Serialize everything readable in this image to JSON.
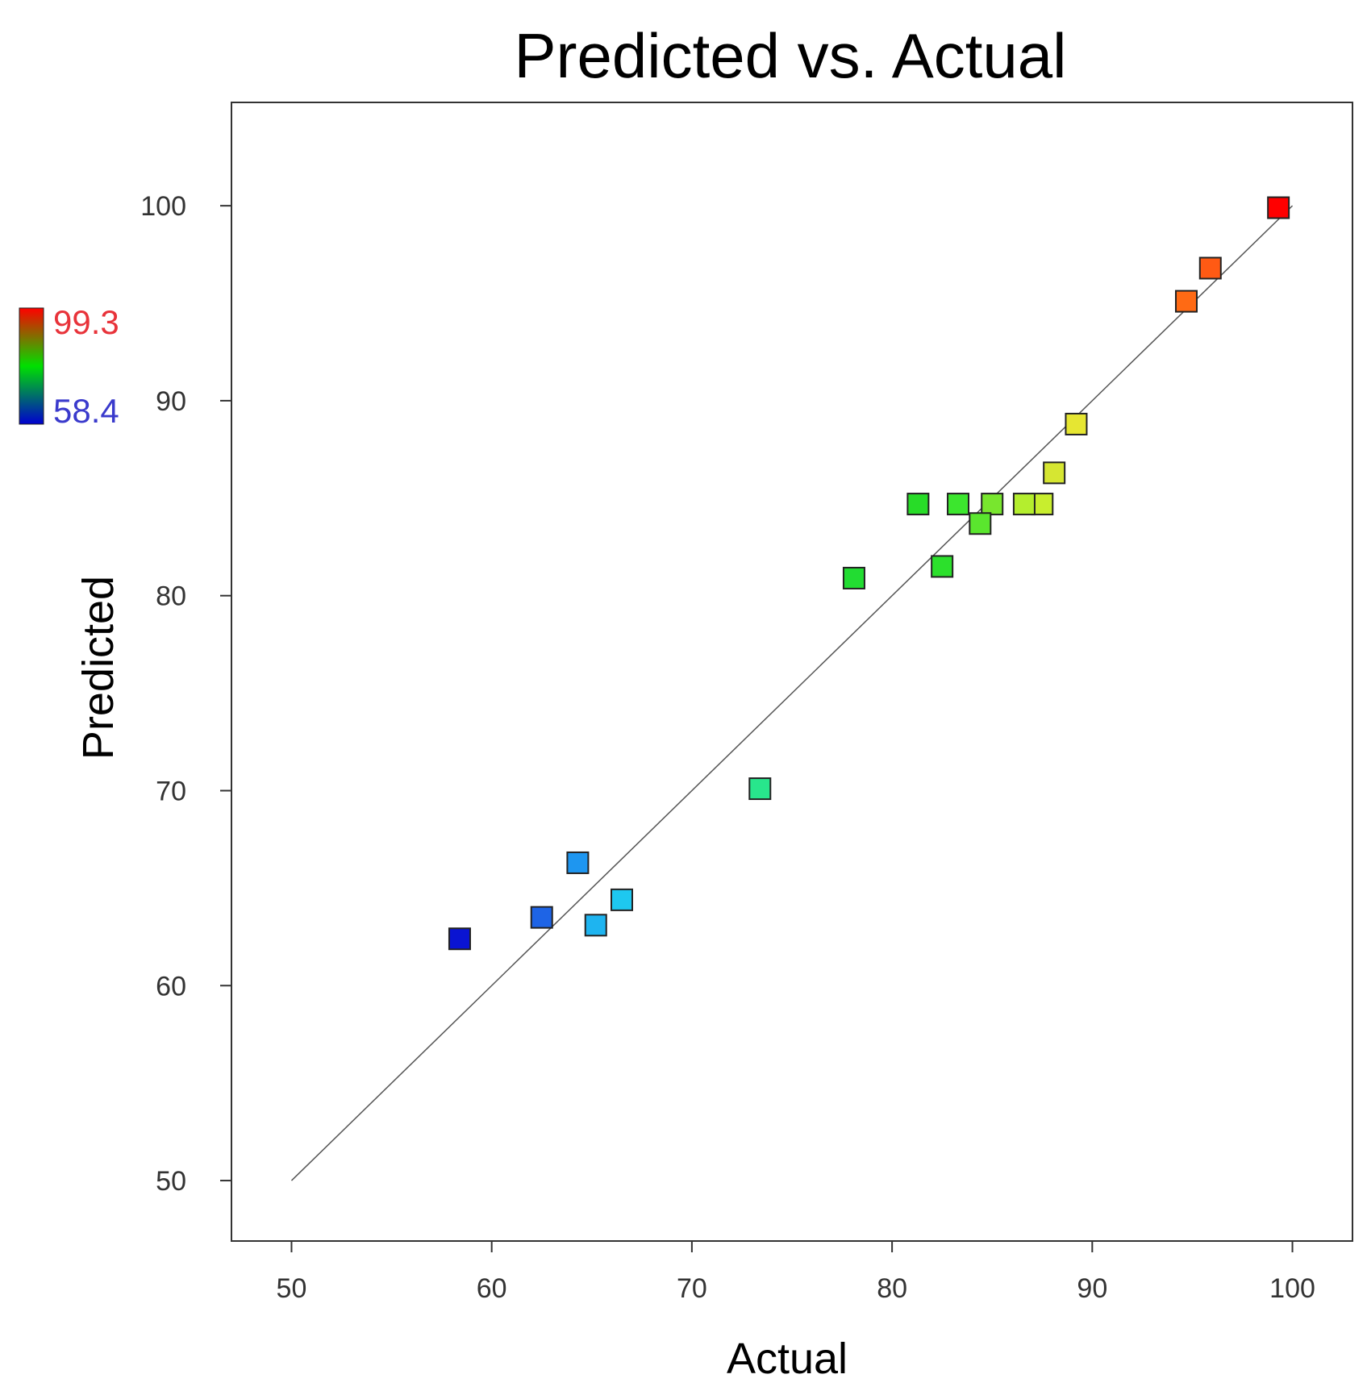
{
  "chart_data": {
    "type": "scatter",
    "title": "Predicted vs. Actual",
    "xlabel": "Actual",
    "ylabel": "Predicted",
    "xlim": [
      47,
      103
    ],
    "ylim": [
      46.9,
      105.3
    ],
    "xticks": [
      50,
      60,
      70,
      80,
      90,
      100
    ],
    "yticks": [
      50,
      60,
      70,
      80,
      90,
      100
    ],
    "reference_line": {
      "from": [
        50,
        50
      ],
      "to": [
        100,
        100
      ]
    },
    "grid": false,
    "color_scale": {
      "max_label": "99.3",
      "min_label": "58.4",
      "max": 99.3,
      "min": 58.4,
      "max_color": "#e8333a",
      "min_color": "#3a3acc",
      "placement": "left"
    },
    "points": [
      {
        "x": 99.3,
        "y": 99.9,
        "color": "#ff0000"
      },
      {
        "x": 95.9,
        "y": 96.8,
        "color": "#ff5a14"
      },
      {
        "x": 94.7,
        "y": 95.1,
        "color": "#ff6a14"
      },
      {
        "x": 89.2,
        "y": 88.8,
        "color": "#e6e632"
      },
      {
        "x": 88.1,
        "y": 86.3,
        "color": "#d6e632"
      },
      {
        "x": 87.5,
        "y": 84.7,
        "color": "#c8ee2e"
      },
      {
        "x": 86.6,
        "y": 84.7,
        "color": "#b4ee2e"
      },
      {
        "x": 85.0,
        "y": 84.7,
        "color": "#78e62e"
      },
      {
        "x": 84.4,
        "y": 83.7,
        "color": "#5ae62e"
      },
      {
        "x": 83.3,
        "y": 84.7,
        "color": "#3ce62e"
      },
      {
        "x": 81.3,
        "y": 84.7,
        "color": "#28dc28"
      },
      {
        "x": 82.5,
        "y": 81.5,
        "color": "#2ce02c"
      },
      {
        "x": 78.1,
        "y": 80.9,
        "color": "#22dc32"
      },
      {
        "x": 73.4,
        "y": 70.1,
        "color": "#28e68c"
      },
      {
        "x": 66.5,
        "y": 64.4,
        "color": "#1ec8f0"
      },
      {
        "x": 65.2,
        "y": 63.1,
        "color": "#1eb4f0"
      },
      {
        "x": 64.3,
        "y": 66.3,
        "color": "#1e96f0"
      },
      {
        "x": 62.5,
        "y": 63.5,
        "color": "#1e64e6"
      },
      {
        "x": 58.4,
        "y": 62.4,
        "color": "#0a14d2"
      }
    ]
  }
}
